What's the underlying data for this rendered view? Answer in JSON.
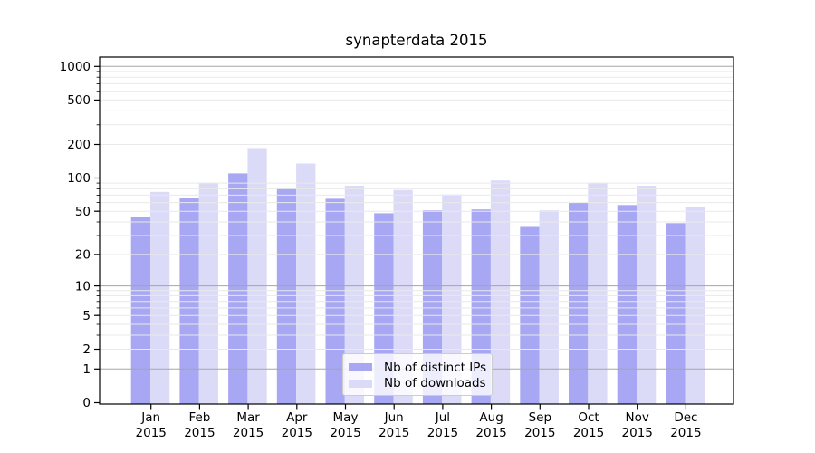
{
  "chart_data": {
    "type": "bar",
    "title": "synapterdata 2015",
    "xlabel": "",
    "ylabel": "",
    "yscale": "log1p",
    "grid": "on",
    "legend_position": "inside lower-center",
    "categories": [
      "Jan 2015",
      "Feb 2015",
      "Mar 2015",
      "Apr 2015",
      "May 2015",
      "Jun 2015",
      "Jul 2015",
      "Aug 2015",
      "Sep 2015",
      "Oct 2015",
      "Nov 2015",
      "Dec 2015"
    ],
    "month_labels": [
      "Jan",
      "Feb",
      "Mar",
      "Apr",
      "May",
      "Jun",
      "Jul",
      "Aug",
      "Sep",
      "Oct",
      "Nov",
      "Dec"
    ],
    "year_label": "2015",
    "series": [
      {
        "name": "Nb of distinct IPs",
        "color": "#a7a7f3",
        "values": [
          44,
          66,
          110,
          80,
          65,
          48,
          51,
          52,
          36,
          60,
          57,
          39
        ]
      },
      {
        "name": "Nb of downloads",
        "color": "#dbdbf8",
        "values": [
          75,
          90,
          186,
          135,
          85,
          78,
          71,
          95,
          51,
          90,
          85,
          55
        ]
      }
    ],
    "y_ticks": [
      0,
      1,
      2,
      5,
      10,
      20,
      50,
      100,
      200,
      500,
      1000
    ],
    "y_minor_gridlines": [
      2,
      3,
      4,
      5,
      6,
      7,
      8,
      9,
      20,
      30,
      40,
      50,
      60,
      70,
      80,
      90,
      200,
      300,
      400,
      500,
      600,
      700,
      800,
      900
    ],
    "y_major_gridlines": [
      1,
      10,
      100,
      1000
    ],
    "ylim": [
      0,
      1200
    ]
  },
  "colors": {
    "background": "#ffffff",
    "bar_distinct_ips": "#a7a7f3",
    "bar_downloads": "#dbdbf8",
    "major_grid": "#a5a5a5",
    "minor_grid": "#e9e9e9",
    "axis": "#000000",
    "text": "#000000",
    "legend_border": "#cccccc"
  }
}
